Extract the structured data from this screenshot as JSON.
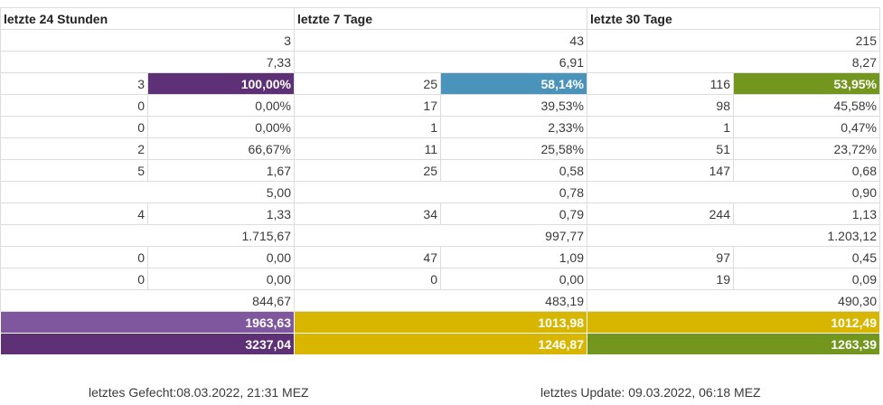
{
  "headers": [
    "letzte 24 Stunden",
    "letzte 7 Tage",
    "letzte 30 Tage"
  ],
  "colors": {
    "purple_dark": "#5e3075",
    "purple_light": "#7f579e",
    "blue": "#4a93bb",
    "green": "#72961e",
    "yellow": "#d8b600"
  },
  "rows": [
    {
      "type": "single",
      "values": [
        "3",
        "43",
        "215"
      ]
    },
    {
      "type": "single",
      "values": [
        "7,33",
        "6,91",
        "8,27"
      ]
    },
    {
      "type": "pair",
      "values": [
        [
          "3",
          "100,00%"
        ],
        [
          "25",
          "58,14%"
        ],
        [
          "116",
          "53,95%"
        ]
      ],
      "highlight": [
        "#5e3075",
        "#4a93bb",
        "#72961e"
      ]
    },
    {
      "type": "pair",
      "values": [
        [
          "0",
          "0,00%"
        ],
        [
          "17",
          "39,53%"
        ],
        [
          "98",
          "45,58%"
        ]
      ]
    },
    {
      "type": "pair",
      "values": [
        [
          "0",
          "0,00%"
        ],
        [
          "1",
          "2,33%"
        ],
        [
          "1",
          "0,47%"
        ]
      ]
    },
    {
      "type": "pair",
      "values": [
        [
          "2",
          "66,67%"
        ],
        [
          "11",
          "25,58%"
        ],
        [
          "51",
          "23,72%"
        ]
      ]
    },
    {
      "type": "pair",
      "values": [
        [
          "5",
          "1,67"
        ],
        [
          "25",
          "0,58"
        ],
        [
          "147",
          "0,68"
        ]
      ]
    },
    {
      "type": "single",
      "values": [
        "5,00",
        "0,78",
        "0,90"
      ]
    },
    {
      "type": "pair",
      "values": [
        [
          "4",
          "1,33"
        ],
        [
          "34",
          "0,79"
        ],
        [
          "244",
          "1,13"
        ]
      ]
    },
    {
      "type": "single",
      "values": [
        "1.715,67",
        "997,77",
        "1.203,12"
      ]
    },
    {
      "type": "pair",
      "values": [
        [
          "0",
          "0,00"
        ],
        [
          "47",
          "1,09"
        ],
        [
          "97",
          "0,45"
        ]
      ]
    },
    {
      "type": "pair",
      "values": [
        [
          "0",
          "0,00"
        ],
        [
          "0",
          "0,00"
        ],
        [
          "19",
          "0,09"
        ]
      ]
    },
    {
      "type": "single",
      "values": [
        "844,67",
        "483,19",
        "490,30"
      ]
    },
    {
      "type": "sum",
      "values": [
        "1963,63",
        "1013,98",
        "1012,49"
      ],
      "bg": [
        "#7f579e",
        "#d8b600",
        "#d8b600"
      ]
    },
    {
      "type": "sum",
      "values": [
        "3237,04",
        "1246,87",
        "1263,39"
      ],
      "bg": [
        "#5e3075",
        "#d8b600",
        "#72961e"
      ]
    }
  ],
  "footer": {
    "left": "letztes Gefecht:08.03.2022, 21:31 MEZ",
    "right": "letztes Update: 09.03.2022, 06:18 MEZ"
  }
}
